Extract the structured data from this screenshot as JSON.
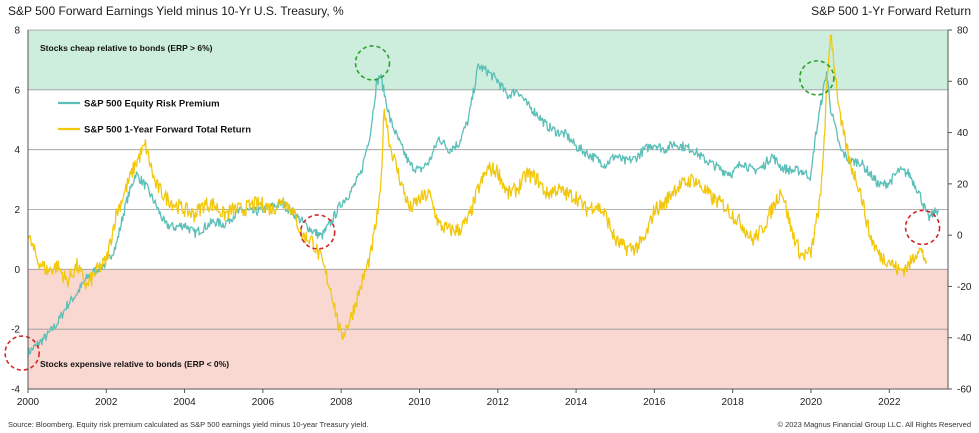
{
  "chart_data": {
    "type": "line",
    "title": "S&P 500 Forward Earnings Yield minus 10-Yr U.S. Treasury, %",
    "right_axis_title": "S&P 500 1-Yr Forward Return",
    "left_axis": {
      "ylim": [
        -4,
        8
      ],
      "ticks": [
        "-4",
        "-2",
        "0",
        "2",
        "4",
        "6",
        "8"
      ]
    },
    "right_axis": {
      "ylim": [
        -60,
        80
      ],
      "ticks": [
        "-60",
        "-40",
        "-20",
        "0",
        "20",
        "40",
        "60",
        "80"
      ]
    },
    "x_axis": {
      "xlim": [
        2000,
        2023.5
      ],
      "ticks": [
        "2000",
        "2002",
        "2004",
        "2006",
        "2008",
        "2010",
        "2012",
        "2014",
        "2016",
        "2018",
        "2020",
        "2022"
      ]
    },
    "zones": [
      {
        "label": "Stocks cheap relative to bonds (ERP > 6%)",
        "from": 6,
        "to": 8,
        "color": "#cdeedd"
      },
      {
        "label": "Stocks expensive relative to bonds (ERP < 0%)",
        "from": -4,
        "to": 0,
        "color": "#f8d8d0"
      }
    ],
    "series": [
      {
        "name": "S&P 500 Equity Risk Premium",
        "axis": "left",
        "color": "#5cbfb8",
        "x": [
          2000.0,
          2000.25,
          2000.5,
          2000.75,
          2001.0,
          2001.25,
          2001.5,
          2001.75,
          2002.0,
          2002.25,
          2002.5,
          2002.75,
          2003.0,
          2003.25,
          2003.5,
          2003.75,
          2004.0,
          2004.25,
          2004.5,
          2004.75,
          2005.0,
          2005.25,
          2005.5,
          2005.75,
          2006.0,
          2006.25,
          2006.5,
          2006.75,
          2007.0,
          2007.25,
          2007.5,
          2007.75,
          2008.0,
          2008.25,
          2008.5,
          2008.75,
          2008.9,
          2009.0,
          2009.25,
          2009.5,
          2009.75,
          2010.0,
          2010.25,
          2010.5,
          2010.75,
          2011.0,
          2011.25,
          2011.5,
          2011.75,
          2012.0,
          2012.25,
          2012.5,
          2012.75,
          2013.0,
          2013.25,
          2013.5,
          2013.75,
          2014.0,
          2014.25,
          2014.5,
          2014.75,
          2015.0,
          2015.25,
          2015.5,
          2015.75,
          2016.0,
          2016.25,
          2016.5,
          2016.75,
          2017.0,
          2017.25,
          2017.5,
          2017.75,
          2018.0,
          2018.25,
          2018.5,
          2018.75,
          2019.0,
          2019.25,
          2019.5,
          2019.75,
          2020.0,
          2020.1,
          2020.25,
          2020.4,
          2020.5,
          2020.75,
          2021.0,
          2021.25,
          2021.5,
          2021.75,
          2022.0,
          2022.25,
          2022.5,
          2022.75,
          2023.0,
          2023.25
        ],
        "values": [
          -2.8,
          -2.5,
          -2.2,
          -1.8,
          -1.2,
          -0.8,
          -0.3,
          0.0,
          0.2,
          0.8,
          2.2,
          3.2,
          2.8,
          2.2,
          1.5,
          1.4,
          1.5,
          1.2,
          1.4,
          1.6,
          1.5,
          1.8,
          2.0,
          1.9,
          2.0,
          2.1,
          2.2,
          1.9,
          1.6,
          1.3,
          1.1,
          1.6,
          2.2,
          2.6,
          3.2,
          4.6,
          6.2,
          6.5,
          5.0,
          4.2,
          3.5,
          3.3,
          3.6,
          4.4,
          4.0,
          4.2,
          5.0,
          6.8,
          6.6,
          6.3,
          5.8,
          6.0,
          5.5,
          5.2,
          4.8,
          4.6,
          4.5,
          4.1,
          3.9,
          3.7,
          3.5,
          3.8,
          3.6,
          3.7,
          4.0,
          4.2,
          4.0,
          4.2,
          4.1,
          4.0,
          3.7,
          3.5,
          3.3,
          3.2,
          3.6,
          3.3,
          3.4,
          3.8,
          3.4,
          3.3,
          3.3,
          3.1,
          4.3,
          5.5,
          6.6,
          5.4,
          4.0,
          3.6,
          3.6,
          3.2,
          2.8,
          2.9,
          3.3,
          3.2,
          2.6,
          1.7,
          2.0
        ]
      },
      {
        "name": "S&P 500 1-Year Forward Total Return",
        "axis": "right",
        "color": "#f2c80f",
        "x": [
          2000.0,
          2000.25,
          2000.5,
          2000.75,
          2001.0,
          2001.25,
          2001.5,
          2001.75,
          2002.0,
          2002.25,
          2002.5,
          2002.75,
          2003.0,
          2003.25,
          2003.5,
          2003.75,
          2004.0,
          2004.25,
          2004.5,
          2004.75,
          2005.0,
          2005.25,
          2005.5,
          2005.75,
          2006.0,
          2006.25,
          2006.5,
          2006.75,
          2007.0,
          2007.25,
          2007.5,
          2007.75,
          2008.0,
          2008.25,
          2008.5,
          2008.75,
          2009.0,
          2009.1,
          2009.25,
          2009.5,
          2009.75,
          2010.0,
          2010.25,
          2010.5,
          2010.75,
          2011.0,
          2011.25,
          2011.5,
          2011.75,
          2012.0,
          2012.25,
          2012.5,
          2012.75,
          2013.0,
          2013.25,
          2013.5,
          2013.75,
          2014.0,
          2014.25,
          2014.5,
          2014.75,
          2015.0,
          2015.25,
          2015.5,
          2015.75,
          2016.0,
          2016.25,
          2016.5,
          2016.75,
          2017.0,
          2017.25,
          2017.5,
          2017.75,
          2018.0,
          2018.25,
          2018.5,
          2018.75,
          2019.0,
          2019.25,
          2019.5,
          2019.75,
          2020.0,
          2020.25,
          2020.4,
          2020.5,
          2020.75,
          2021.0,
          2021.25,
          2021.5,
          2021.75,
          2022.0,
          2022.25,
          2022.5,
          2022.75,
          2022.95
        ],
        "values": [
          0,
          -10,
          -14,
          -12,
          -18,
          -12,
          -20,
          -14,
          -10,
          8,
          18,
          28,
          35,
          20,
          15,
          12,
          10,
          8,
          12,
          12,
          8,
          10,
          10,
          12,
          12,
          10,
          14,
          10,
          0,
          -2,
          -10,
          -22,
          -40,
          -32,
          -20,
          -8,
          15,
          50,
          35,
          22,
          10,
          14,
          16,
          4,
          2,
          2,
          6,
          18,
          26,
          25,
          16,
          18,
          24,
          22,
          16,
          18,
          16,
          15,
          10,
          12,
          8,
          -2,
          -5,
          -5,
          -2,
          10,
          12,
          18,
          20,
          22,
          18,
          14,
          12,
          8,
          4,
          -2,
          2,
          10,
          18,
          2,
          -8,
          -7,
          15,
          55,
          80,
          45,
          28,
          18,
          0,
          -8,
          -10,
          -14,
          -12,
          -5,
          -10
        ]
      }
    ],
    "legend": [
      "S&P 500 Equity Risk Premium",
      "S&P 500 1-Year Forward Total Return"
    ],
    "annotations": [
      {
        "type": "circle",
        "color": "#2ca02c",
        "x": 2008.8,
        "axis": "left",
        "y": 6.9
      },
      {
        "type": "circle",
        "color": "#2ca02c",
        "x": 2020.15,
        "axis": "left",
        "y": 6.4
      },
      {
        "type": "circle",
        "color": "#d62728",
        "x": 2007.4,
        "axis": "left",
        "y": 1.25
      },
      {
        "type": "circle",
        "color": "#d62728",
        "x": 2022.85,
        "axis": "left",
        "y": 1.4
      },
      {
        "type": "circle",
        "color": "#d62728",
        "x": 1999.85,
        "axis": "left",
        "y": -2.8
      }
    ]
  },
  "footer": {
    "source": "Source: Bloomberg. Equity risk premium calculated as S&P 500 earnings yield minus 10-year Treasury yield.",
    "copyright": "© 2023 Magnus Financial Group LLC. All Rights Reserved"
  }
}
